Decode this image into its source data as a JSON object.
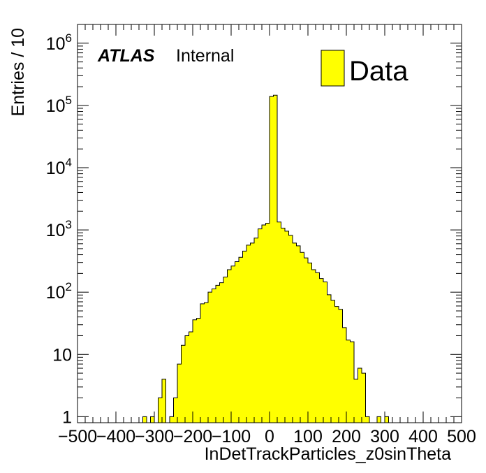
{
  "chart_data": {
    "type": "bar",
    "style": "histogram",
    "label_bold": "ATLAS",
    "label": "Internal",
    "xlabel": "InDetTrackParticles_z0sinTheta",
    "ylabel": "Entries / 10",
    "xlim": [
      -500,
      500
    ],
    "ylim": [
      0.8,
      2000000
    ],
    "yscale": "log",
    "bin_width": 10,
    "x_ticks": [
      "−500",
      "−400",
      "−300",
      "−200",
      "−100",
      "0",
      "100",
      "200",
      "300",
      "400",
      "500"
    ],
    "y_ticks": [
      {
        "base": "1",
        "exp": ""
      },
      {
        "base": "10",
        "exp": ""
      },
      {
        "base": "10",
        "exp": "2"
      },
      {
        "base": "10",
        "exp": "3"
      },
      {
        "base": "10",
        "exp": "4"
      },
      {
        "base": "10",
        "exp": "5"
      },
      {
        "base": "10",
        "exp": "6"
      }
    ],
    "fill_color": "#ffff00",
    "legend": {
      "label": "Data",
      "position": "top-right"
    },
    "series": [
      {
        "name": "Data",
        "bins_low_edge": [
          -330,
          -320,
          -310,
          -300,
          -290,
          -280,
          -270,
          -260,
          -250,
          -240,
          -230,
          -220,
          -210,
          -200,
          -190,
          -180,
          -170,
          -160,
          -150,
          -140,
          -130,
          -120,
          -110,
          -100,
          -90,
          -80,
          -70,
          -60,
          -50,
          -40,
          -30,
          -20,
          -10,
          0,
          10,
          20,
          30,
          40,
          50,
          60,
          70,
          80,
          90,
          100,
          110,
          120,
          130,
          140,
          150,
          160,
          170,
          180,
          190,
          200,
          210,
          220,
          230,
          240,
          250,
          260,
          270,
          280,
          290,
          300
        ],
        "values": [
          1,
          0,
          1,
          0,
          2,
          4,
          0,
          1,
          2,
          7,
          14,
          20,
          23,
          36,
          38,
          65,
          68,
          100,
          113,
          129,
          142,
          175,
          230,
          263,
          309,
          363,
          457,
          570,
          616,
          741,
          1040,
          1200,
          1280,
          139000,
          146000,
          1340,
          1070,
          955,
          817,
          615,
          555,
          435,
          355,
          295,
          230,
          206,
          166,
          146,
          91,
          74,
          59,
          53,
          27,
          17,
          16,
          4,
          6,
          5,
          1,
          0,
          0,
          1,
          0,
          1
        ]
      }
    ]
  }
}
